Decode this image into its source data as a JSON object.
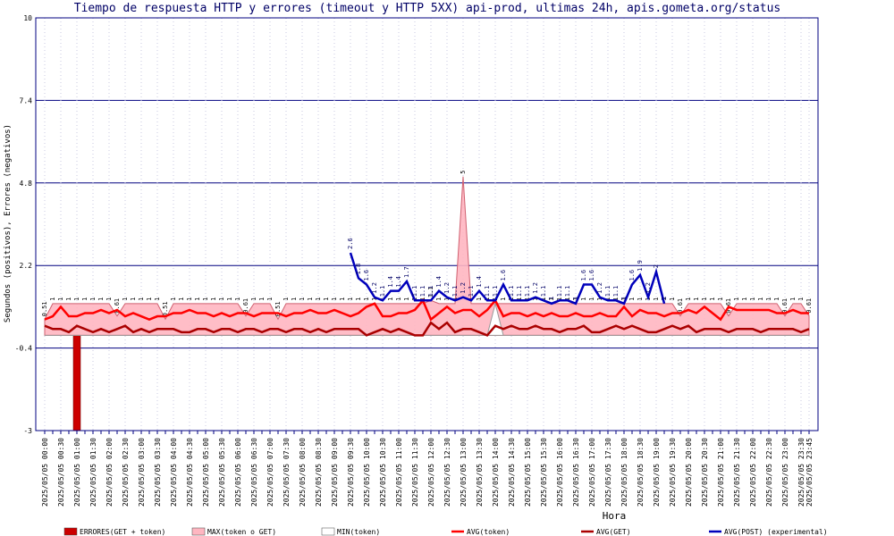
{
  "chart_data": {
    "type": "combo",
    "title": "Tiempo de respuesta HTTP y errores (timeout y HTTP 5XX) api-prod, ultimas 24h, apis.gometa.org/status",
    "x_label": "Hora",
    "y_label": "Segundos (positivos), Errores (negativos)",
    "ylim": [
      -3,
      10
    ],
    "yticks": [
      -3,
      -0.4,
      2.2,
      4.8,
      7.4,
      10
    ],
    "grid": true,
    "legend": "bottom",
    "categories": [
      "2025/05/05 00:00",
      null,
      "2025/05/05 00:30",
      null,
      "2025/05/05 01:00",
      null,
      "2025/05/05 01:30",
      null,
      "2025/05/05 02:00",
      null,
      "2025/05/05 02:30",
      null,
      "2025/05/05 03:00",
      null,
      "2025/05/05 03:30",
      null,
      "2025/05/05 04:00",
      null,
      "2025/05/05 04:30",
      null,
      "2025/05/05 05:00",
      null,
      "2025/05/05 05:30",
      null,
      "2025/05/05 06:00",
      null,
      "2025/05/05 06:30",
      null,
      "2025/05/05 07:00",
      null,
      "2025/05/05 07:30",
      null,
      "2025/05/05 08:00",
      null,
      "2025/05/05 08:30",
      null,
      "2025/05/05 09:00",
      null,
      "2025/05/05 09:30",
      null,
      "2025/05/05 10:00",
      null,
      "2025/05/05 10:30",
      null,
      "2025/05/05 11:00",
      null,
      "2025/05/05 11:30",
      null,
      "2025/05/05 12:00",
      null,
      "2025/05/05 12:30",
      null,
      "2025/05/05 13:00",
      null,
      "2025/05/05 13:30",
      null,
      "2025/05/05 14:00",
      null,
      "2025/05/05 14:30",
      null,
      "2025/05/05 15:00",
      null,
      "2025/05/05 15:30",
      null,
      "2025/05/05 16:00",
      null,
      "2025/05/05 16:30",
      null,
      "2025/05/05 17:00",
      null,
      "2025/05/05 17:30",
      null,
      "2025/05/05 18:00",
      null,
      "2025/05/05 18:30",
      null,
      "2025/05/05 19:00",
      null,
      "2025/05/05 19:30",
      null,
      "2025/05/05 20:00",
      null,
      "2025/05/05 20:30",
      null,
      "2025/05/05 21:00",
      null,
      "2025/05/05 21:30",
      null,
      "2025/05/05 22:00",
      null,
      "2025/05/05 22:30",
      null,
      "2025/05/05 23:00",
      null,
      "2025/05/05 23:30",
      "2025/05/05 23:45"
    ],
    "series": [
      {
        "name": "ERRORES(GET + token)",
        "type": "bar",
        "color": "#cc0000",
        "values": [
          0,
          0,
          0,
          0,
          -3,
          0,
          0,
          0,
          0,
          0,
          0,
          0,
          0,
          0,
          0,
          0,
          0,
          0,
          0,
          0,
          0,
          0,
          0,
          0,
          0,
          0,
          0,
          0,
          0,
          0,
          0,
          0,
          0,
          0,
          0,
          0,
          0,
          0,
          0,
          0,
          0,
          0,
          0,
          0,
          0,
          0,
          0,
          0,
          0,
          0,
          0,
          0,
          0,
          0,
          0,
          0,
          0,
          0,
          0,
          0,
          0,
          0,
          0,
          0,
          0,
          0,
          0,
          0,
          0,
          0,
          0,
          0,
          0,
          0,
          0,
          0,
          0,
          0,
          0,
          0,
          0,
          0,
          0,
          0,
          0,
          0,
          0,
          0,
          0,
          0,
          0,
          0,
          0,
          0,
          0,
          0
        ]
      },
      {
        "name": "MAX(token o GET)",
        "type": "area",
        "color": "#ffb6c1",
        "values": [
          0.51,
          1,
          1,
          1,
          1,
          1,
          1,
          1,
          1,
          0.61,
          1,
          1,
          1,
          1,
          1,
          0.51,
          1,
          1,
          1,
          1,
          1,
          1,
          1,
          1,
          1,
          0.61,
          1,
          1,
          1,
          0.51,
          1,
          1,
          1,
          1,
          1,
          1,
          1,
          1,
          1,
          1,
          1,
          1,
          1,
          1,
          1,
          1,
          1,
          1,
          1.1,
          1,
          1,
          1,
          5,
          1,
          1,
          1,
          1,
          1,
          1,
          1,
          1,
          1,
          1,
          1,
          1,
          1,
          1,
          1,
          1,
          1,
          1,
          1,
          1,
          1,
          1,
          1,
          1,
          1,
          1,
          0.61,
          1,
          1,
          1,
          1,
          1,
          0.61,
          1,
          1,
          1,
          1,
          1,
          1,
          0.61,
          1,
          1,
          0.61
        ]
      },
      {
        "name": "MIN(token)",
        "type": "area",
        "color": "#ffffff",
        "values": [
          0,
          0,
          0,
          0,
          0,
          0,
          0,
          0,
          0,
          0,
          0,
          0,
          0,
          0,
          0,
          0,
          0,
          0,
          0,
          0,
          0,
          0,
          0,
          0,
          0,
          0,
          0,
          0,
          0,
          0,
          0,
          0,
          0,
          0,
          0,
          0,
          0,
          0,
          0,
          0,
          0,
          0,
          0,
          0,
          0,
          0,
          0,
          0,
          0,
          0,
          0,
          0,
          0,
          0,
          0,
          0,
          1,
          0,
          0,
          0,
          0,
          0,
          0,
          0,
          0,
          0,
          0,
          0,
          0,
          0,
          0,
          0,
          0,
          0,
          0,
          0,
          0,
          0,
          0,
          0,
          0,
          0,
          0,
          0,
          0,
          0,
          0,
          0,
          0,
          0,
          0,
          0,
          0,
          0,
          0,
          0
        ]
      },
      {
        "name": "AVG(token)",
        "type": "line",
        "color": "#ff0000",
        "values": [
          0.5,
          0.6,
          0.9,
          0.6,
          0.6,
          0.7,
          0.7,
          0.8,
          0.7,
          0.8,
          0.6,
          0.7,
          0.6,
          0.5,
          0.6,
          0.6,
          0.7,
          0.7,
          0.8,
          0.7,
          0.7,
          0.6,
          0.7,
          0.6,
          0.7,
          0.7,
          0.6,
          0.7,
          0.7,
          0.7,
          0.6,
          0.7,
          0.7,
          0.8,
          0.7,
          0.7,
          0.8,
          0.7,
          0.6,
          0.7,
          0.9,
          1,
          0.6,
          0.6,
          0.7,
          0.7,
          0.8,
          1.1,
          0.5,
          0.7,
          0.9,
          0.7,
          0.8,
          0.8,
          0.6,
          0.8,
          1.1,
          0.6,
          0.7,
          0.7,
          0.6,
          0.7,
          0.6,
          0.7,
          0.6,
          0.6,
          0.7,
          0.6,
          0.6,
          0.7,
          0.6,
          0.6,
          0.9,
          0.6,
          0.8,
          0.7,
          0.7,
          0.6,
          0.7,
          0.7,
          0.8,
          0.7,
          0.9,
          0.7,
          0.5,
          0.9,
          0.8,
          0.8,
          0.8,
          0.8,
          0.8,
          0.7,
          0.7,
          0.8,
          0.7,
          0.7
        ]
      },
      {
        "name": "AVG(GET)",
        "type": "line",
        "color": "#aa0000",
        "values": [
          0.3,
          0.2,
          0.2,
          0.1,
          0.3,
          0.2,
          0.1,
          0.2,
          0.1,
          0.2,
          0.3,
          0.1,
          0.2,
          0.1,
          0.2,
          0.2,
          0.2,
          0.1,
          0.1,
          0.2,
          0.2,
          0.1,
          0.2,
          0.2,
          0.1,
          0.2,
          0.2,
          0.1,
          0.2,
          0.2,
          0.1,
          0.2,
          0.2,
          0.1,
          0.2,
          0.1,
          0.2,
          0.2,
          0.2,
          0.2,
          0,
          0.1,
          0.2,
          0.1,
          0.2,
          0.1,
          0,
          0,
          0.4,
          0.2,
          0.4,
          0.1,
          0.2,
          0.2,
          0.1,
          0,
          0.3,
          0.2,
          0.3,
          0.2,
          0.2,
          0.3,
          0.2,
          0.2,
          0.1,
          0.2,
          0.2,
          0.3,
          0.1,
          0.1,
          0.2,
          0.3,
          0.2,
          0.3,
          0.2,
          0.1,
          0.1,
          0.2,
          0.3,
          0.2,
          0.3,
          0.1,
          0.2,
          0.2,
          0.2,
          0.1,
          0.2,
          0.2,
          0.2,
          0.1,
          0.2,
          0.2,
          0.2,
          0.2,
          0.1,
          0.2
        ]
      },
      {
        "name": "AVG(POST) (experimental)",
        "type": "line",
        "color": "#0000bb",
        "labels": true,
        "values": [
          null,
          null,
          null,
          null,
          null,
          null,
          null,
          null,
          null,
          null,
          null,
          null,
          null,
          null,
          null,
          null,
          null,
          null,
          null,
          null,
          null,
          null,
          null,
          null,
          null,
          null,
          null,
          null,
          null,
          null,
          null,
          null,
          null,
          null,
          null,
          null,
          null,
          null,
          2.6,
          1.8,
          1.6,
          1.2,
          1.1,
          1.4,
          1.4,
          1.7,
          1.1,
          1.1,
          1.1,
          1.4,
          1.2,
          1.1,
          1.2,
          1.1,
          1.4,
          1.1,
          1.1,
          1.6,
          1.1,
          1.1,
          1.1,
          1.2,
          1.1,
          1,
          1.1,
          1.1,
          1,
          1.6,
          1.6,
          1.2,
          1.1,
          1.1,
          1,
          1.6,
          1.9,
          1.2,
          2,
          1,
          null,
          null,
          null,
          null,
          null,
          null,
          null,
          null,
          null,
          null,
          null,
          null,
          null,
          null,
          null,
          null,
          null,
          null
        ]
      }
    ]
  }
}
